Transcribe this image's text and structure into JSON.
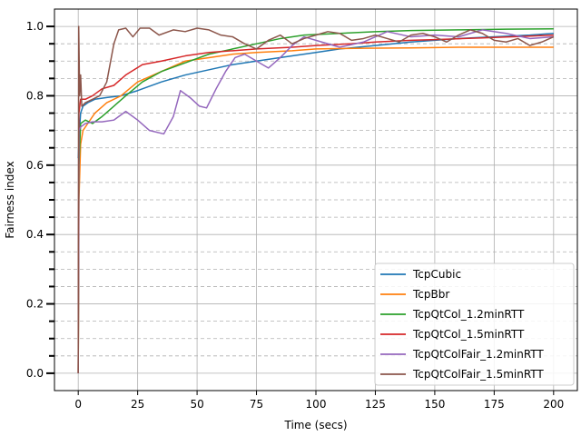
{
  "chart_data": {
    "type": "line",
    "title": "",
    "xlabel": "Time (secs)",
    "ylabel": "Fairness index",
    "xlim": [
      -10,
      210
    ],
    "ylim": [
      -0.05,
      1.05
    ],
    "x_ticks": [
      0,
      25,
      50,
      75,
      100,
      125,
      150,
      175,
      200
    ],
    "y_ticks": [
      0.0,
      0.2,
      0.4,
      0.6,
      0.8,
      1.0
    ],
    "y_minor_ticks": [
      0.05,
      0.1,
      0.15,
      0.25,
      0.3,
      0.35,
      0.45,
      0.5,
      0.55,
      0.65,
      0.7,
      0.75,
      0.85,
      0.9,
      0.95
    ],
    "grid": true,
    "minor_grid": "dashed",
    "legend_position": "bottom-right",
    "series": [
      {
        "name": "TcpCubic",
        "color": "#1f77b4",
        "points": [
          [
            0,
            0.62
          ],
          [
            0.5,
            0.7
          ],
          [
            1,
            0.75
          ],
          [
            2,
            0.77
          ],
          [
            4,
            0.78
          ],
          [
            7,
            0.79
          ],
          [
            12,
            0.795
          ],
          [
            18,
            0.8
          ],
          [
            25,
            0.815
          ],
          [
            35,
            0.84
          ],
          [
            45,
            0.86
          ],
          [
            55,
            0.875
          ],
          [
            65,
            0.89
          ],
          [
            75,
            0.9
          ],
          [
            90,
            0.915
          ],
          [
            100,
            0.925
          ],
          [
            110,
            0.935
          ],
          [
            125,
            0.945
          ],
          [
            140,
            0.955
          ],
          [
            150,
            0.96
          ],
          [
            160,
            0.965
          ],
          [
            175,
            0.97
          ],
          [
            190,
            0.975
          ],
          [
            200,
            0.98
          ]
        ]
      },
      {
        "name": "TcpBbr",
        "color": "#ff7f0e",
        "points": [
          [
            0,
            0.0
          ],
          [
            0.3,
            0.5
          ],
          [
            1,
            0.66
          ],
          [
            2,
            0.7
          ],
          [
            4,
            0.72
          ],
          [
            7,
            0.75
          ],
          [
            12,
            0.78
          ],
          [
            18,
            0.8
          ],
          [
            25,
            0.84
          ],
          [
            35,
            0.87
          ],
          [
            45,
            0.9
          ],
          [
            55,
            0.91
          ],
          [
            65,
            0.92
          ],
          [
            75,
            0.925
          ],
          [
            90,
            0.93
          ],
          [
            100,
            0.935
          ],
          [
            120,
            0.937
          ],
          [
            140,
            0.938
          ],
          [
            160,
            0.94
          ],
          [
            180,
            0.94
          ],
          [
            200,
            0.94
          ]
        ]
      },
      {
        "name": "TcpQtCol_1.2minRTT",
        "color": "#2ca02c",
        "points": [
          [
            0,
            0.0
          ],
          [
            0.3,
            0.6
          ],
          [
            1,
            0.72
          ],
          [
            3,
            0.73
          ],
          [
            6,
            0.72
          ],
          [
            10,
            0.74
          ],
          [
            15,
            0.77
          ],
          [
            20,
            0.8
          ],
          [
            27,
            0.84
          ],
          [
            35,
            0.87
          ],
          [
            45,
            0.895
          ],
          [
            55,
            0.92
          ],
          [
            65,
            0.935
          ],
          [
            75,
            0.95
          ],
          [
            85,
            0.965
          ],
          [
            95,
            0.975
          ],
          [
            110,
            0.98
          ],
          [
            125,
            0.985
          ],
          [
            140,
            0.988
          ],
          [
            160,
            0.99
          ],
          [
            180,
            0.992
          ],
          [
            200,
            0.993
          ]
        ]
      },
      {
        "name": "TcpQtCol_1.5minRTT",
        "color": "#d62728",
        "points": [
          [
            0,
            0.0
          ],
          [
            0.3,
            0.75
          ],
          [
            1,
            0.79
          ],
          [
            3,
            0.79
          ],
          [
            6,
            0.8
          ],
          [
            10,
            0.82
          ],
          [
            15,
            0.83
          ],
          [
            20,
            0.86
          ],
          [
            27,
            0.89
          ],
          [
            35,
            0.9
          ],
          [
            45,
            0.915
          ],
          [
            55,
            0.925
          ],
          [
            65,
            0.93
          ],
          [
            75,
            0.935
          ],
          [
            90,
            0.94
          ],
          [
            100,
            0.945
          ],
          [
            115,
            0.95
          ],
          [
            125,
            0.955
          ],
          [
            140,
            0.96
          ],
          [
            150,
            0.962
          ],
          [
            170,
            0.967
          ],
          [
            190,
            0.972
          ],
          [
            200,
            0.975
          ]
        ]
      },
      {
        "name": "TcpQtColFair_1.2minRTT",
        "color": "#9467bd",
        "points": [
          [
            0,
            0.0
          ],
          [
            0.3,
            0.7
          ],
          [
            1,
            0.71
          ],
          [
            3,
            0.72
          ],
          [
            6,
            0.725
          ],
          [
            10,
            0.725
          ],
          [
            15,
            0.73
          ],
          [
            20,
            0.755
          ],
          [
            25,
            0.73
          ],
          [
            30,
            0.7
          ],
          [
            36,
            0.69
          ],
          [
            40,
            0.74
          ],
          [
            43,
            0.815
          ],
          [
            47,
            0.795
          ],
          [
            51,
            0.77
          ],
          [
            54,
            0.765
          ],
          [
            58,
            0.82
          ],
          [
            62,
            0.87
          ],
          [
            66,
            0.91
          ],
          [
            70,
            0.92
          ],
          [
            75,
            0.9
          ],
          [
            80,
            0.88
          ],
          [
            85,
            0.91
          ],
          [
            90,
            0.945
          ],
          [
            95,
            0.97
          ],
          [
            100,
            0.96
          ],
          [
            110,
            0.94
          ],
          [
            120,
            0.955
          ],
          [
            130,
            0.985
          ],
          [
            140,
            0.97
          ],
          [
            150,
            0.975
          ],
          [
            160,
            0.97
          ],
          [
            170,
            0.99
          ],
          [
            180,
            0.98
          ],
          [
            190,
            0.965
          ],
          [
            200,
            0.97
          ]
        ]
      },
      {
        "name": "TcpQtColFair_1.5minRTT",
        "color": "#8c564b",
        "points": [
          [
            0,
            0.0
          ],
          [
            0.2,
            1.0
          ],
          [
            0.6,
            0.8
          ],
          [
            1,
            0.86
          ],
          [
            1.5,
            0.77
          ],
          [
            3,
            0.78
          ],
          [
            6,
            0.79
          ],
          [
            9,
            0.8
          ],
          [
            12,
            0.84
          ],
          [
            15,
            0.95
          ],
          [
            17,
            0.99
          ],
          [
            20,
            0.995
          ],
          [
            23,
            0.97
          ],
          [
            26,
            0.995
          ],
          [
            30,
            0.995
          ],
          [
            34,
            0.975
          ],
          [
            40,
            0.99
          ],
          [
            45,
            0.985
          ],
          [
            50,
            0.995
          ],
          [
            55,
            0.99
          ],
          [
            60,
            0.975
          ],
          [
            65,
            0.97
          ],
          [
            70,
            0.95
          ],
          [
            75,
            0.935
          ],
          [
            80,
            0.96
          ],
          [
            85,
            0.975
          ],
          [
            90,
            0.95
          ],
          [
            95,
            0.965
          ],
          [
            100,
            0.975
          ],
          [
            105,
            0.985
          ],
          [
            110,
            0.98
          ],
          [
            115,
            0.96
          ],
          [
            120,
            0.965
          ],
          [
            125,
            0.975
          ],
          [
            130,
            0.965
          ],
          [
            135,
            0.955
          ],
          [
            140,
            0.975
          ],
          [
            145,
            0.98
          ],
          [
            150,
            0.97
          ],
          [
            155,
            0.955
          ],
          [
            160,
            0.975
          ],
          [
            165,
            0.99
          ],
          [
            170,
            0.98
          ],
          [
            175,
            0.96
          ],
          [
            180,
            0.955
          ],
          [
            185,
            0.965
          ],
          [
            190,
            0.945
          ],
          [
            195,
            0.955
          ],
          [
            200,
            0.97
          ]
        ]
      }
    ]
  }
}
